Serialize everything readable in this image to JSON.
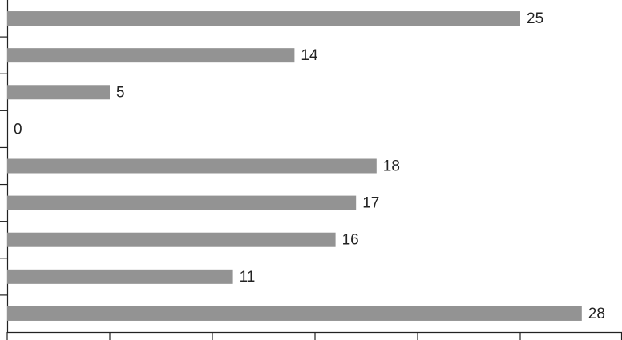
{
  "chart_data": {
    "type": "barh",
    "categories": [
      null,
      null,
      null,
      null,
      null,
      null,
      null,
      null,
      null
    ],
    "values": [
      25,
      14,
      5,
      0,
      18,
      17,
      16,
      11,
      28
    ],
    "color": "#939393",
    "xlim": [
      0,
      30
    ],
    "xticks": [
      0,
      5,
      10,
      15,
      20,
      25,
      30
    ]
  }
}
